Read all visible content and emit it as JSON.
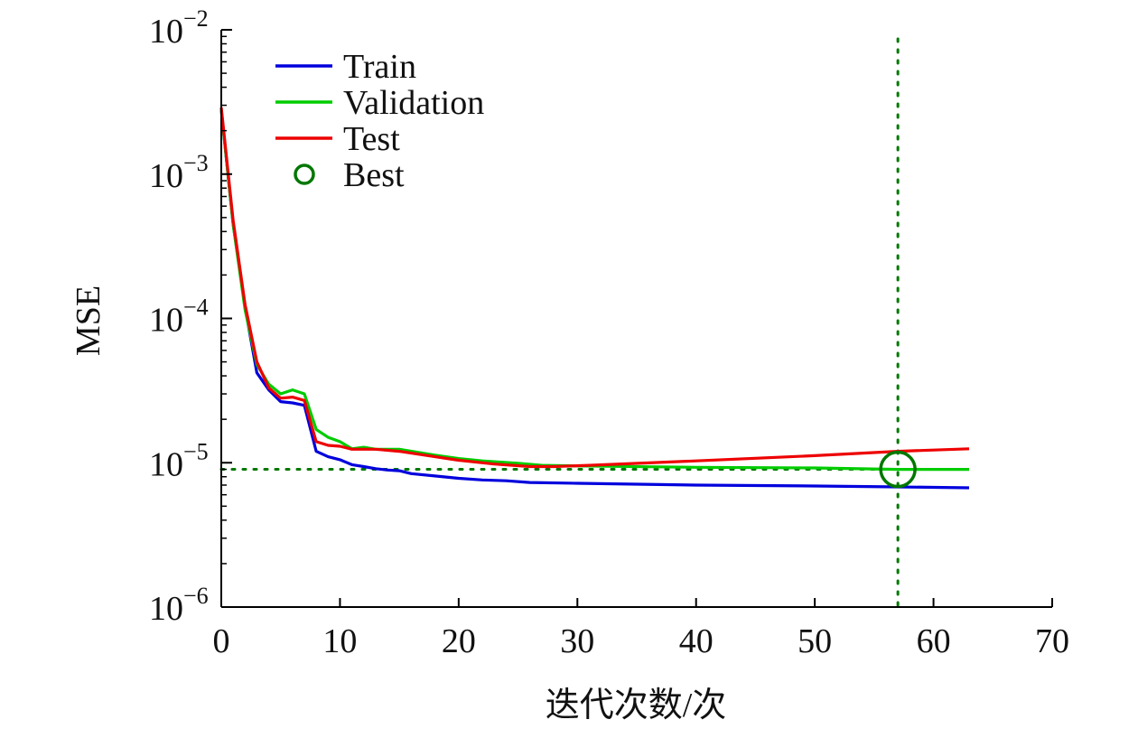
{
  "chart_data": {
    "type": "line",
    "title": "",
    "xlabel": "迭代次数/次",
    "ylabel": "MSE",
    "xlim": [
      0,
      70
    ],
    "ylim": [
      1e-06,
      0.01
    ],
    "yscale": "log",
    "grid": false,
    "legend_position": "top-left",
    "x_ticks": [
      0,
      10,
      20,
      30,
      40,
      50,
      60,
      70
    ],
    "x_tick_labels": [
      "0",
      "10",
      "20",
      "30",
      "40",
      "50",
      "60",
      "70"
    ],
    "y_ticks": [
      1e-06,
      1e-05,
      0.0001,
      0.001,
      0.01
    ],
    "y_tick_labels": [
      {
        "base": "10",
        "exp": "−6"
      },
      {
        "base": "10",
        "exp": "−5"
      },
      {
        "base": "10",
        "exp": "−4"
      },
      {
        "base": "10",
        "exp": "−3"
      },
      {
        "base": "10",
        "exp": "−2"
      }
    ],
    "series": [
      {
        "name": "Train",
        "color": "#0000dd",
        "points": [
          [
            0,
            0.0028
          ],
          [
            1,
            0.00045
          ],
          [
            2,
            0.00012
          ],
          [
            3,
            4.2e-05
          ],
          [
            4,
            3.2e-05
          ],
          [
            5,
            2.65e-05
          ],
          [
            6,
            2.6e-05
          ],
          [
            7,
            2.5e-05
          ],
          [
            8,
            1.2e-05
          ],
          [
            9,
            1.1e-05
          ],
          [
            10,
            1.05e-05
          ],
          [
            11,
            9.7e-06
          ],
          [
            12,
            9.4e-06
          ],
          [
            13,
            9.1e-06
          ],
          [
            14,
            8.9e-06
          ],
          [
            15,
            8.8e-06
          ],
          [
            16,
            8.4e-06
          ],
          [
            18,
            8.1e-06
          ],
          [
            20,
            7.8e-06
          ],
          [
            22,
            7.6e-06
          ],
          [
            24,
            7.5e-06
          ],
          [
            26,
            7.3e-06
          ],
          [
            30,
            7.2e-06
          ],
          [
            40,
            7e-06
          ],
          [
            50,
            6.9e-06
          ],
          [
            57,
            6.8e-06
          ],
          [
            63,
            6.7e-06
          ]
        ]
      },
      {
        "name": "Validation",
        "color": "#00cc00",
        "points": [
          [
            0,
            0.0028
          ],
          [
            1,
            0.00045
          ],
          [
            2,
            0.000115
          ],
          [
            3,
            4.8e-05
          ],
          [
            4,
            3.5e-05
          ],
          [
            5,
            3e-05
          ],
          [
            6,
            3.2e-05
          ],
          [
            7,
            3e-05
          ],
          [
            8,
            1.7e-05
          ],
          [
            9,
            1.5e-05
          ],
          [
            10,
            1.4e-05
          ],
          [
            11,
            1.25e-05
          ],
          [
            12,
            1.28e-05
          ],
          [
            13,
            1.24e-05
          ],
          [
            15,
            1.24e-05
          ],
          [
            18,
            1.13e-05
          ],
          [
            20,
            1.07e-05
          ],
          [
            22,
            1.03e-05
          ],
          [
            25,
            9.9e-06
          ],
          [
            27,
            9.6e-06
          ],
          [
            30,
            9.5e-06
          ],
          [
            40,
            9.3e-06
          ],
          [
            50,
            9.2e-06
          ],
          [
            57,
            9e-06
          ],
          [
            63,
            9e-06
          ]
        ]
      },
      {
        "name": "Test",
        "color": "#ee0000",
        "points": [
          [
            0,
            0.0029
          ],
          [
            1,
            0.00048
          ],
          [
            2,
            0.000125
          ],
          [
            3,
            5e-05
          ],
          [
            4,
            3.3e-05
          ],
          [
            5,
            2.8e-05
          ],
          [
            6,
            2.85e-05
          ],
          [
            7,
            2.7e-05
          ],
          [
            8,
            1.4e-05
          ],
          [
            9,
            1.32e-05
          ],
          [
            10,
            1.3e-05
          ],
          [
            11,
            1.24e-05
          ],
          [
            13,
            1.24e-05
          ],
          [
            15,
            1.2e-05
          ],
          [
            18,
            1.1e-05
          ],
          [
            20,
            1.04e-05
          ],
          [
            23,
            9.8e-06
          ],
          [
            26,
            9.4e-06
          ],
          [
            28,
            9.4e-06
          ],
          [
            31,
            9.6e-06
          ],
          [
            40,
            1.03e-05
          ],
          [
            50,
            1.12e-05
          ],
          [
            57,
            1.2e-05
          ],
          [
            63,
            1.25e-05
          ]
        ]
      }
    ],
    "best": {
      "name": "Best",
      "x": 57,
      "y": 9e-06,
      "color": "#007700"
    },
    "reference_lines": [
      {
        "orientation": "vertical",
        "value": 57,
        "style": "dotted",
        "color": "#007700"
      },
      {
        "orientation": "horizontal",
        "value": 9e-06,
        "style": "dotted",
        "color": "#007700"
      }
    ]
  }
}
